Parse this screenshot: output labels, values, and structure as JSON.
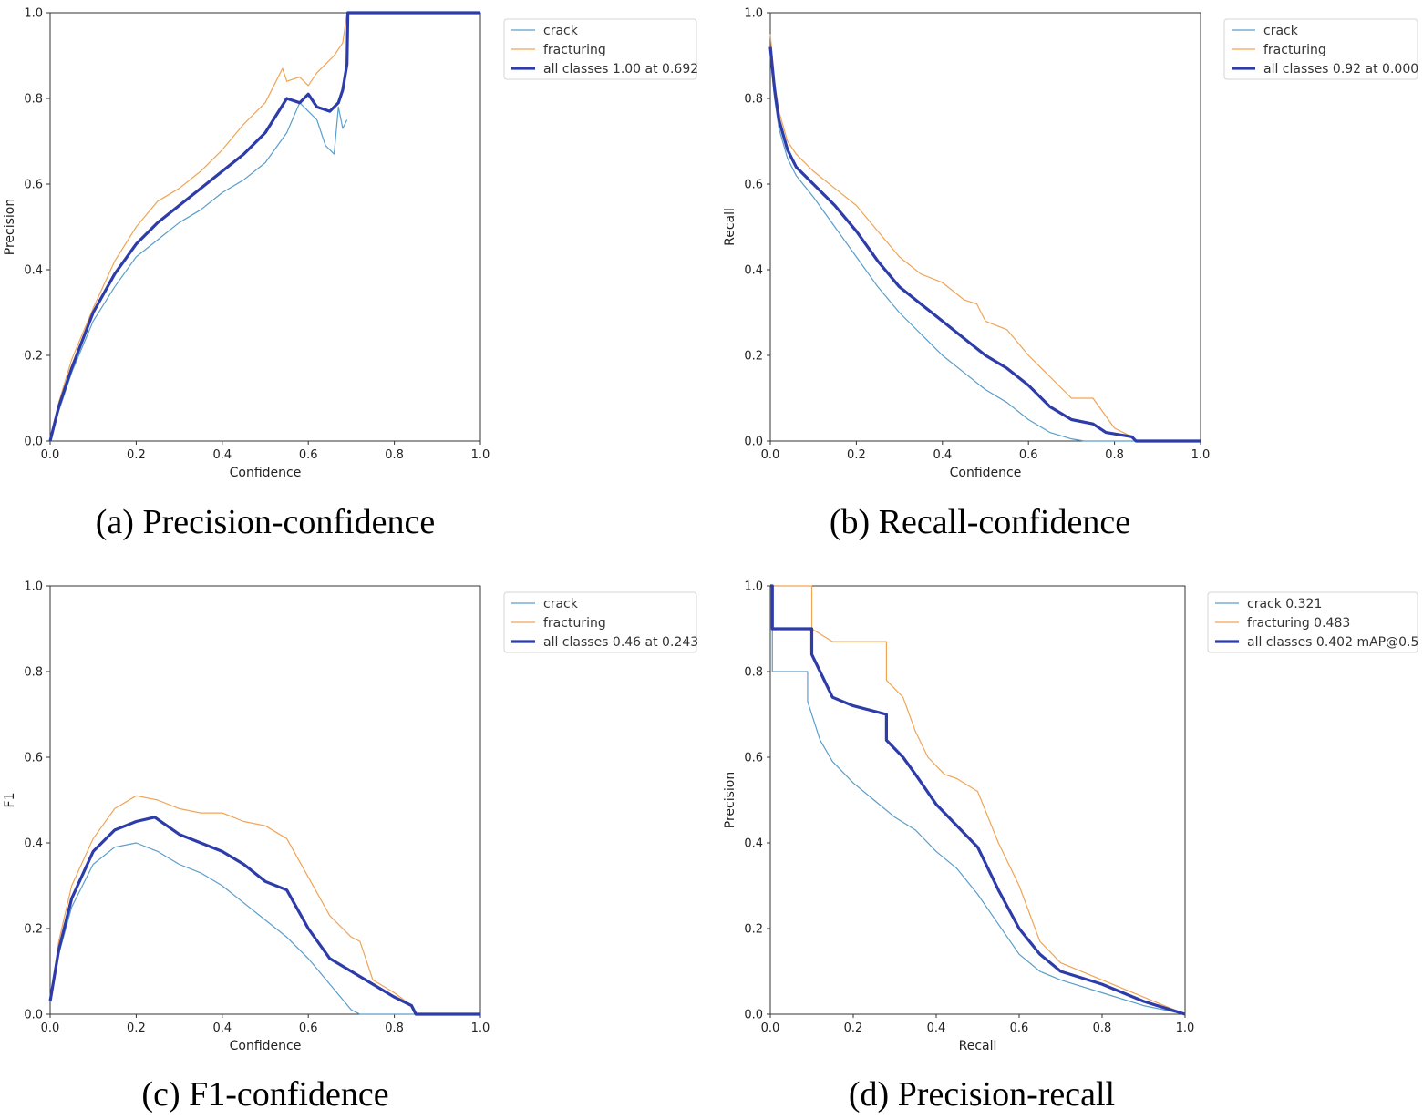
{
  "colors": {
    "crack": "#5b9ec9",
    "fracturing": "#f0a455",
    "all": "#2d3ca8"
  },
  "chart_data": [
    {
      "type": "line",
      "caption": "(a) Precision-confidence",
      "xlabel": "Confidence",
      "ylabel": "Precision",
      "xlim": [
        0,
        1
      ],
      "ylim": [
        0,
        1
      ],
      "xticks": [
        "0.0",
        "0.2",
        "0.4",
        "0.6",
        "0.8",
        "1.0"
      ],
      "yticks": [
        "0.0",
        "0.2",
        "0.4",
        "0.6",
        "0.8",
        "1.0"
      ],
      "legend_position": "outside-right",
      "series": [
        {
          "name": "crack",
          "x": [
            0,
            0.02,
            0.05,
            0.1,
            0.15,
            0.2,
            0.25,
            0.3,
            0.35,
            0.4,
            0.45,
            0.5,
            0.55,
            0.58,
            0.6,
            0.62,
            0.64,
            0.66,
            0.67,
            0.68,
            0.69
          ],
          "y": [
            0,
            0.07,
            0.16,
            0.28,
            0.36,
            0.43,
            0.47,
            0.51,
            0.54,
            0.58,
            0.61,
            0.65,
            0.72,
            0.79,
            0.77,
            0.75,
            0.69,
            0.67,
            0.78,
            0.73,
            0.75
          ]
        },
        {
          "name": "fracturing",
          "x": [
            0,
            0.02,
            0.05,
            0.1,
            0.15,
            0.2,
            0.25,
            0.3,
            0.35,
            0.4,
            0.45,
            0.5,
            0.54,
            0.55,
            0.58,
            0.6,
            0.62,
            0.64,
            0.66,
            0.68,
            0.69,
            0.7,
            1.0
          ],
          "y": [
            0,
            0.09,
            0.19,
            0.31,
            0.42,
            0.5,
            0.56,
            0.59,
            0.63,
            0.68,
            0.74,
            0.79,
            0.87,
            0.84,
            0.85,
            0.83,
            0.86,
            0.88,
            0.9,
            0.93,
            1.0,
            1.0,
            1.0
          ]
        },
        {
          "name": "all classes 1.00 at 0.692",
          "x": [
            0,
            0.02,
            0.05,
            0.1,
            0.15,
            0.2,
            0.25,
            0.3,
            0.35,
            0.4,
            0.45,
            0.5,
            0.55,
            0.58,
            0.6,
            0.62,
            0.65,
            0.67,
            0.68,
            0.69,
            0.692,
            0.7,
            1.0
          ],
          "y": [
            0,
            0.08,
            0.17,
            0.3,
            0.39,
            0.46,
            0.51,
            0.55,
            0.59,
            0.63,
            0.67,
            0.72,
            0.8,
            0.79,
            0.81,
            0.78,
            0.77,
            0.79,
            0.82,
            0.88,
            1.0,
            1.0,
            1.0
          ]
        }
      ]
    },
    {
      "type": "line",
      "caption": "(b) Recall-confidence",
      "xlabel": "Confidence",
      "ylabel": "Recall",
      "xlim": [
        0,
        1
      ],
      "ylim": [
        0,
        1
      ],
      "xticks": [
        "0.0",
        "0.2",
        "0.4",
        "0.6",
        "0.8",
        "1.0"
      ],
      "yticks": [
        "0.0",
        "0.2",
        "0.4",
        "0.6",
        "0.8",
        "1.0"
      ],
      "legend_position": "outside-right",
      "series": [
        {
          "name": "crack",
          "x": [
            0,
            0.01,
            0.02,
            0.04,
            0.06,
            0.1,
            0.15,
            0.2,
            0.25,
            0.3,
            0.35,
            0.4,
            0.45,
            0.5,
            0.55,
            0.6,
            0.65,
            0.7,
            0.73,
            0.8,
            1.0
          ],
          "y": [
            0.9,
            0.8,
            0.73,
            0.66,
            0.62,
            0.57,
            0.5,
            0.43,
            0.36,
            0.3,
            0.25,
            0.2,
            0.16,
            0.12,
            0.09,
            0.05,
            0.02,
            0.005,
            0,
            0,
            0
          ]
        },
        {
          "name": "fracturing",
          "x": [
            0,
            0.01,
            0.02,
            0.04,
            0.06,
            0.1,
            0.15,
            0.2,
            0.25,
            0.3,
            0.35,
            0.4,
            0.45,
            0.48,
            0.5,
            0.55,
            0.6,
            0.65,
            0.7,
            0.75,
            0.8,
            0.84,
            0.85,
            1.0
          ],
          "y": [
            0.95,
            0.84,
            0.77,
            0.7,
            0.67,
            0.63,
            0.59,
            0.55,
            0.49,
            0.43,
            0.39,
            0.37,
            0.33,
            0.32,
            0.28,
            0.26,
            0.2,
            0.15,
            0.1,
            0.1,
            0.03,
            0.01,
            0,
            0
          ]
        },
        {
          "name": "all classes 0.92 at 0.000",
          "x": [
            0,
            0.01,
            0.02,
            0.04,
            0.06,
            0.1,
            0.15,
            0.2,
            0.25,
            0.3,
            0.35,
            0.4,
            0.45,
            0.5,
            0.55,
            0.6,
            0.65,
            0.7,
            0.75,
            0.78,
            0.84,
            0.85,
            1.0
          ],
          "y": [
            0.92,
            0.82,
            0.75,
            0.68,
            0.64,
            0.6,
            0.55,
            0.49,
            0.42,
            0.36,
            0.32,
            0.28,
            0.24,
            0.2,
            0.17,
            0.13,
            0.08,
            0.05,
            0.04,
            0.02,
            0.01,
            0,
            0
          ]
        }
      ]
    },
    {
      "type": "line",
      "caption": "(c) F1-confidence",
      "xlabel": "Confidence",
      "ylabel": "F1",
      "xlim": [
        0,
        1
      ],
      "ylim": [
        0,
        1
      ],
      "xticks": [
        "0.0",
        "0.2",
        "0.4",
        "0.6",
        "0.8",
        "1.0"
      ],
      "yticks": [
        "0.0",
        "0.2",
        "0.4",
        "0.6",
        "0.8",
        "1.0"
      ],
      "legend_position": "outside-right",
      "series": [
        {
          "name": "crack",
          "x": [
            0,
            0.02,
            0.05,
            0.1,
            0.15,
            0.2,
            0.25,
            0.3,
            0.35,
            0.4,
            0.45,
            0.5,
            0.55,
            0.6,
            0.65,
            0.7,
            0.72,
            1.0
          ],
          "y": [
            0.03,
            0.14,
            0.25,
            0.35,
            0.39,
            0.4,
            0.38,
            0.35,
            0.33,
            0.3,
            0.26,
            0.22,
            0.18,
            0.13,
            0.07,
            0.01,
            0,
            0
          ]
        },
        {
          "name": "fracturing",
          "x": [
            0,
            0.02,
            0.05,
            0.1,
            0.15,
            0.2,
            0.25,
            0.3,
            0.35,
            0.4,
            0.45,
            0.5,
            0.55,
            0.6,
            0.65,
            0.7,
            0.72,
            0.75,
            0.8,
            0.84,
            0.85,
            1.0
          ],
          "y": [
            0.03,
            0.17,
            0.3,
            0.41,
            0.48,
            0.51,
            0.5,
            0.48,
            0.47,
            0.47,
            0.45,
            0.44,
            0.41,
            0.32,
            0.23,
            0.18,
            0.17,
            0.08,
            0.05,
            0.02,
            0,
            0
          ]
        },
        {
          "name": "all classes 0.46 at 0.243",
          "x": [
            0,
            0.02,
            0.05,
            0.1,
            0.15,
            0.2,
            0.243,
            0.3,
            0.35,
            0.4,
            0.45,
            0.5,
            0.55,
            0.6,
            0.65,
            0.7,
            0.75,
            0.8,
            0.84,
            0.85,
            1.0
          ],
          "y": [
            0.03,
            0.15,
            0.27,
            0.38,
            0.43,
            0.45,
            0.46,
            0.42,
            0.4,
            0.38,
            0.35,
            0.31,
            0.29,
            0.2,
            0.13,
            0.1,
            0.07,
            0.04,
            0.02,
            0,
            0
          ]
        }
      ]
    },
    {
      "type": "line",
      "caption": "(d) Precision-recall",
      "xlabel": "Recall",
      "ylabel": "Precision",
      "xlim": [
        0,
        1
      ],
      "ylim": [
        0,
        1
      ],
      "xticks": [
        "0.0",
        "0.2",
        "0.4",
        "0.6",
        "0.8",
        "1.0"
      ],
      "yticks": [
        "0.0",
        "0.2",
        "0.4",
        "0.6",
        "0.8",
        "1.0"
      ],
      "legend_position": "outside-right",
      "series": [
        {
          "name": "crack 0.321",
          "x": [
            0,
            0.005,
            0.005,
            0.09,
            0.09,
            0.12,
            0.15,
            0.2,
            0.25,
            0.3,
            0.35,
            0.4,
            0.45,
            0.5,
            0.55,
            0.6,
            0.65,
            0.7,
            0.8,
            0.9,
            1.0
          ],
          "y": [
            1.0,
            1.0,
            0.8,
            0.8,
            0.73,
            0.64,
            0.59,
            0.54,
            0.5,
            0.46,
            0.43,
            0.38,
            0.34,
            0.28,
            0.21,
            0.14,
            0.1,
            0.08,
            0.05,
            0.02,
            0
          ]
        },
        {
          "name": "fracturing 0.483",
          "x": [
            0,
            0.1,
            0.1,
            0.15,
            0.28,
            0.28,
            0.32,
            0.35,
            0.38,
            0.42,
            0.45,
            0.5,
            0.55,
            0.6,
            0.65,
            0.7,
            0.8,
            0.9,
            1.0
          ],
          "y": [
            1.0,
            1.0,
            0.9,
            0.87,
            0.87,
            0.78,
            0.74,
            0.66,
            0.6,
            0.56,
            0.55,
            0.52,
            0.4,
            0.3,
            0.17,
            0.12,
            0.08,
            0.04,
            0
          ]
        },
        {
          "name": "all classes 0.402 mAP@0.5",
          "x": [
            0,
            0.005,
            0.005,
            0.1,
            0.1,
            0.12,
            0.15,
            0.2,
            0.28,
            0.28,
            0.32,
            0.35,
            0.4,
            0.45,
            0.5,
            0.55,
            0.6,
            0.65,
            0.7,
            0.8,
            0.9,
            1.0
          ],
          "y": [
            1.0,
            1.0,
            0.9,
            0.9,
            0.84,
            0.8,
            0.74,
            0.72,
            0.7,
            0.64,
            0.6,
            0.56,
            0.49,
            0.44,
            0.39,
            0.29,
            0.2,
            0.14,
            0.1,
            0.07,
            0.03,
            0
          ]
        }
      ]
    }
  ]
}
